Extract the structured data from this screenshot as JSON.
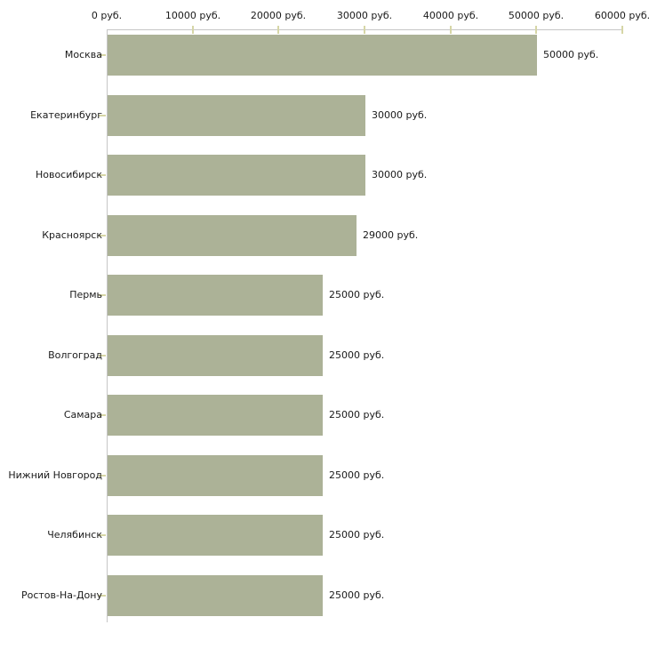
{
  "chart_data": {
    "type": "bar",
    "orientation": "horizontal",
    "title": "",
    "xlabel": "",
    "ylabel": "",
    "categories": [
      "Москва",
      "Екатеринбург",
      "Новосибирск",
      "Красноярск",
      "Пермь",
      "Волгоград",
      "Самара",
      "Нижний Новгород",
      "Челябинск",
      "Ростов-На-Дону"
    ],
    "values": [
      50000,
      30000,
      30000,
      29000,
      25000,
      25000,
      25000,
      25000,
      25000,
      25000
    ],
    "value_labels": [
      "50000 руб.",
      "30000 руб.",
      "30000 руб.",
      "29000 руб.",
      "25000 руб.",
      "25000 руб.",
      "25000 руб.",
      "25000 руб.",
      "25000 руб.",
      "25000 руб."
    ],
    "x_axis": {
      "position": "top",
      "min": 0,
      "max": 60000,
      "ticks": [
        0,
        10000,
        20000,
        30000,
        40000,
        50000,
        60000
      ],
      "tick_labels": [
        "0 руб.",
        "10000 руб.",
        "20000 руб.",
        "30000 руб.",
        "40000 руб.",
        "50000 руб.",
        "60000 руб."
      ]
    },
    "grid": false,
    "legend": false,
    "colors": {
      "bar_fill": "#acb297",
      "axis_line": "#c6c6c6",
      "tick_mark": "#d6d6a6",
      "label_text": "#1a1a1a"
    }
  }
}
